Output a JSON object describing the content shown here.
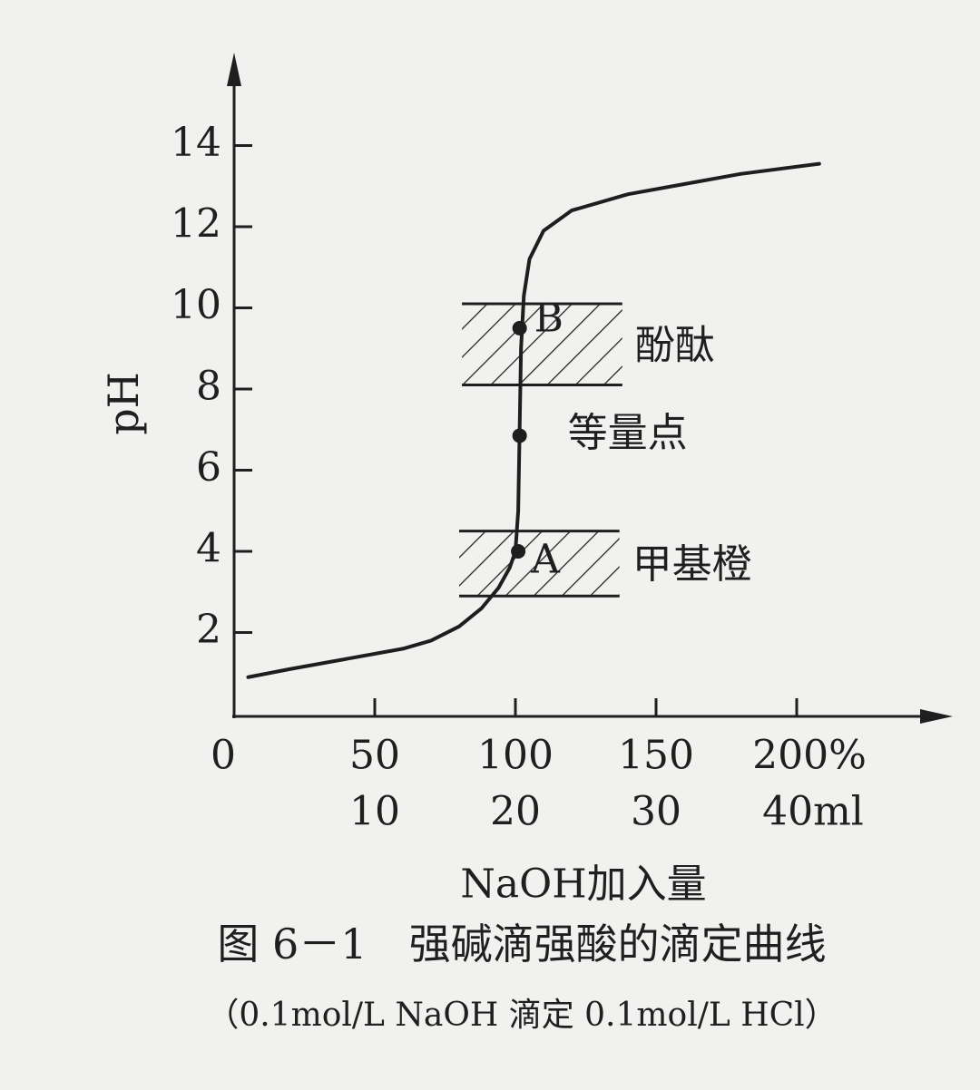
{
  "chart_data": {
    "type": "line",
    "title": "图 6－1　强碱滴强酸的滴定曲线",
    "subtitle": "（0.1mol/L NaOH 滴定 0.1mol/L HCl）",
    "x_label": "NaOH加入量",
    "y_label": "pH",
    "color": "#1e1e1e",
    "x": [
      5,
      20,
      40,
      60,
      70,
      80,
      88,
      94,
      98,
      100,
      101,
      101.5,
      102,
      103,
      105,
      110,
      120,
      140,
      160,
      180,
      208
    ],
    "values": [
      0.9,
      1.1,
      1.35,
      1.6,
      1.8,
      2.15,
      2.6,
      3.1,
      3.6,
      4.0,
      5.0,
      7.0,
      9.0,
      10.3,
      11.2,
      11.9,
      12.4,
      12.8,
      13.05,
      13.3,
      13.55
    ],
    "xlim": [
      0,
      250
    ],
    "ylim": [
      0,
      16
    ],
    "xticks": [
      0,
      50,
      100,
      150,
      {
        "value": 200,
        "label": "200%"
      }
    ],
    "x2lim": [
      0,
      50
    ],
    "x2ticks": [
      10,
      20,
      30,
      {
        "value": 40,
        "label": "40ml"
      }
    ],
    "yticks": [
      2,
      4,
      6,
      8,
      10,
      12,
      14
    ],
    "bands": [
      {
        "label": "酚酞",
        "xlim": [
          81,
          138
        ],
        "ylim": [
          8.1,
          10.1
        ]
      },
      {
        "label": "甲基橙",
        "xlim": [
          80,
          137
        ],
        "ylim": [
          2.9,
          4.5
        ]
      }
    ],
    "points": [
      {
        "label": "B",
        "x": 101.5,
        "y": 9.5
      },
      {
        "label": "等量点",
        "x": 101.5,
        "y": 6.85
      },
      {
        "label": "A",
        "x": 101,
        "y": 4.0
      }
    ]
  }
}
